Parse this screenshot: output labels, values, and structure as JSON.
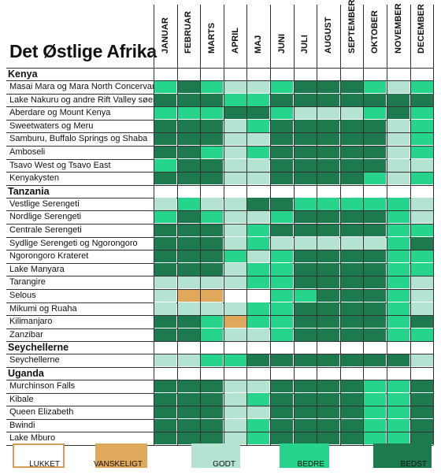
{
  "title": "Det Østlige Afrika",
  "months": [
    "JANUAR",
    "FEBRUAR",
    "MARTS",
    "APRIL",
    "MAJ",
    "JUNI",
    "JULI",
    "AUGUST",
    "SEPTEMBER",
    "OKTOBER",
    "NOVEMBER",
    "DECEMBER"
  ],
  "colors": {
    "L": "#ffffff",
    "V": "#e0a85a",
    "G": "#b4e3d2",
    "B": "#27d48c",
    "T": "#1d7a4f"
  },
  "sections": [
    {
      "name": "Kenya",
      "rows": [
        {
          "label": "Masai Mara og Mara North Concervancy",
          "ratings": [
            "B",
            "T",
            "B",
            "G",
            "G",
            "B",
            "T",
            "T",
            "T",
            "B",
            "G",
            "B"
          ]
        },
        {
          "label": "Lake Nakuru og andre Rift Valley søer",
          "ratings": [
            "T",
            "T",
            "T",
            "B",
            "B",
            "T",
            "T",
            "T",
            "T",
            "T",
            "T",
            "T"
          ]
        },
        {
          "label": "Aberdare og Mount Kenya",
          "ratings": [
            "B",
            "B",
            "B",
            "T",
            "T",
            "B",
            "G",
            "G",
            "G",
            "B",
            "T",
            "B"
          ]
        },
        {
          "label": "Sweetwaters og Meru",
          "ratings": [
            "T",
            "T",
            "T",
            "G",
            "B",
            "T",
            "T",
            "T",
            "T",
            "T",
            "G",
            "B"
          ]
        },
        {
          "label": "Samburu, Buffalo Springs og Shaba",
          "ratings": [
            "T",
            "T",
            "T",
            "G",
            "G",
            "T",
            "T",
            "T",
            "T",
            "T",
            "G",
            "B"
          ]
        },
        {
          "label": "Amboseli",
          "ratings": [
            "T",
            "T",
            "B",
            "G",
            "B",
            "T",
            "T",
            "T",
            "T",
            "T",
            "G",
            "B"
          ]
        },
        {
          "label": "Tsavo West og Tsavo East",
          "ratings": [
            "B",
            "T",
            "T",
            "G",
            "G",
            "T",
            "T",
            "T",
            "T",
            "T",
            "G",
            "G"
          ]
        },
        {
          "label": "Kenyakysten",
          "ratings": [
            "T",
            "T",
            "T",
            "G",
            "G",
            "T",
            "T",
            "T",
            "T",
            "B",
            "G",
            "B"
          ]
        }
      ]
    },
    {
      "name": "Tanzania",
      "rows": [
        {
          "label": "Vestlige Serengeti",
          "ratings": [
            "G",
            "B",
            "G",
            "G",
            "T",
            "T",
            "B",
            "B",
            "B",
            "B",
            "B",
            "G"
          ]
        },
        {
          "label": "Nordlige Serengeti",
          "ratings": [
            "B",
            "T",
            "B",
            "G",
            "G",
            "B",
            "T",
            "T",
            "T",
            "T",
            "B",
            "G"
          ]
        },
        {
          "label": "Centrale Serengeti",
          "ratings": [
            "T",
            "T",
            "T",
            "G",
            "B",
            "T",
            "T",
            "T",
            "T",
            "T",
            "B",
            "B"
          ]
        },
        {
          "label": "Sydlige Serengeti og Ngorongoro",
          "ratings": [
            "T",
            "T",
            "T",
            "G",
            "B",
            "G",
            "G",
            "G",
            "G",
            "G",
            "B",
            "T"
          ]
        },
        {
          "label": "Ngorongoro Krateret",
          "ratings": [
            "T",
            "T",
            "T",
            "B",
            "G",
            "B",
            "T",
            "T",
            "T",
            "T",
            "B",
            "B"
          ]
        },
        {
          "label": "Lake Manyara",
          "ratings": [
            "T",
            "T",
            "T",
            "G",
            "B",
            "B",
            "T",
            "T",
            "T",
            "T",
            "B",
            "B"
          ]
        },
        {
          "label": "Tarangire",
          "ratings": [
            "G",
            "G",
            "G",
            "G",
            "B",
            "B",
            "T",
            "T",
            "T",
            "T",
            "B",
            "G"
          ]
        },
        {
          "label": "Selous",
          "ratings": [
            "G",
            "V",
            "V",
            "L",
            "L",
            "B",
            "B",
            "T",
            "T",
            "T",
            "B",
            "G"
          ]
        },
        {
          "label": "Mikumi og Ruaha",
          "ratings": [
            "G",
            "G",
            "G",
            "G",
            "B",
            "B",
            "T",
            "T",
            "T",
            "T",
            "B",
            "G"
          ]
        },
        {
          "label": "Kilimanjaro",
          "ratings": [
            "T",
            "T",
            "B",
            "V",
            "B",
            "B",
            "T",
            "T",
            "T",
            "T",
            "B",
            "T"
          ]
        },
        {
          "label": "Zanzibar",
          "ratings": [
            "T",
            "T",
            "B",
            "G",
            "G",
            "B",
            "T",
            "T",
            "T",
            "T",
            "B",
            "B"
          ]
        }
      ]
    },
    {
      "name": "Seychellerne",
      "rows": [
        {
          "label": "Seychellerne",
          "ratings": [
            "G",
            "G",
            "B",
            "B",
            "T",
            "T",
            "T",
            "T",
            "T",
            "T",
            "T",
            "G"
          ]
        }
      ]
    },
    {
      "name": "Uganda",
      "rows": [
        {
          "label": "Murchinson Falls",
          "ratings": [
            "T",
            "T",
            "T",
            "G",
            "G",
            "T",
            "T",
            "T",
            "T",
            "B",
            "B",
            "T"
          ]
        },
        {
          "label": "Kibale",
          "ratings": [
            "T",
            "T",
            "T",
            "G",
            "B",
            "T",
            "T",
            "T",
            "T",
            "B",
            "B",
            "T"
          ]
        },
        {
          "label": "Queen Elizabeth",
          "ratings": [
            "T",
            "T",
            "T",
            "G",
            "G",
            "T",
            "T",
            "T",
            "T",
            "B",
            "B",
            "T"
          ]
        },
        {
          "label": "Bwindi",
          "ratings": [
            "T",
            "T",
            "T",
            "G",
            "B",
            "T",
            "T",
            "T",
            "T",
            "B",
            "B",
            "T"
          ]
        },
        {
          "label": "Lake Mburo",
          "ratings": [
            "T",
            "T",
            "T",
            "G",
            "B",
            "T",
            "T",
            "T",
            "T",
            "B",
            "B",
            "T"
          ]
        }
      ]
    }
  ],
  "legend": [
    {
      "key": "L",
      "label": "LUKKET"
    },
    {
      "key": "V",
      "label": "VANSKELIGT"
    },
    {
      "key": "G",
      "label": "GODT"
    },
    {
      "key": "B",
      "label": "BEDRE"
    },
    {
      "key": "T",
      "label": "BEDST"
    }
  ]
}
